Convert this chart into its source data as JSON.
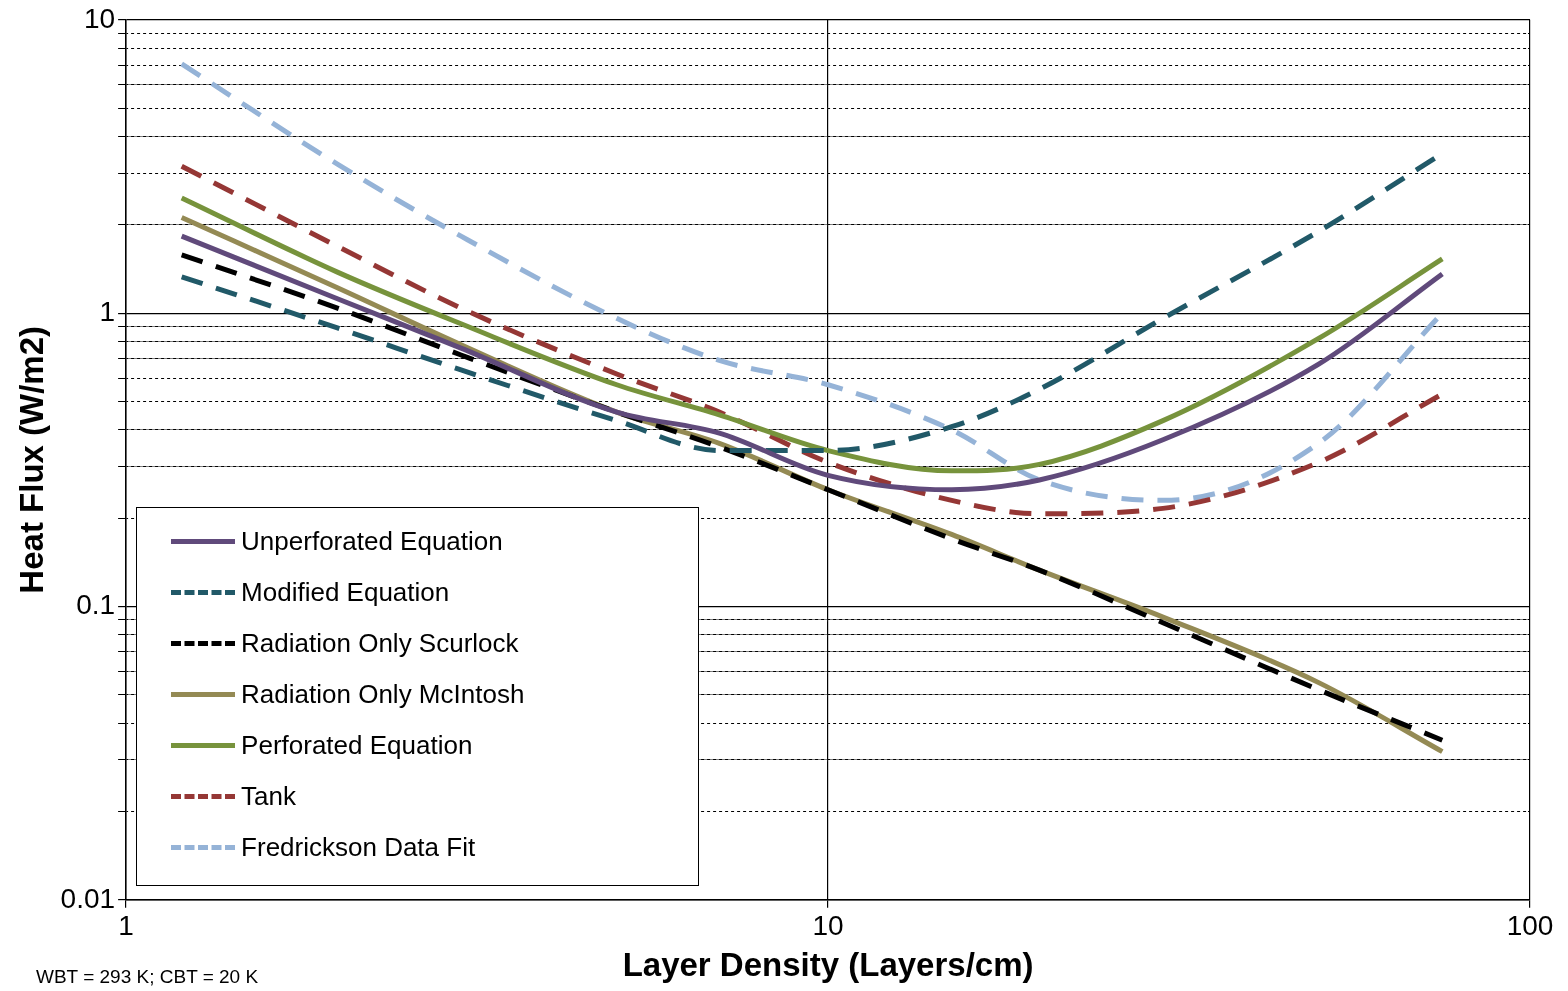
{
  "chart_data": {
    "type": "line",
    "xlabel": "Layer Density (Layers/cm)",
    "ylabel": "Heat Flux (W/m2)",
    "log": "xy",
    "x": [
      1.2,
      2,
      3,
      5,
      7,
      10,
      15,
      20,
      30,
      50,
      75
    ],
    "xlim": [
      1,
      100
    ],
    "xticks": [
      1,
      10,
      100
    ],
    "ylim": [
      0.01,
      10
    ],
    "yticks": [
      0.01,
      {
        "value": 0.02,
        "label": null
      },
      {
        "value": 0.03,
        "label": null
      },
      {
        "value": 0.04,
        "label": null
      },
      {
        "value": 0.05,
        "label": null
      },
      {
        "value": 0.06,
        "label": null
      },
      {
        "value": 0.07,
        "label": null
      },
      {
        "value": 0.08,
        "label": null
      },
      {
        "value": 0.09,
        "label": null
      },
      0.1,
      {
        "value": 0.2,
        "label": null
      },
      {
        "value": 0.3,
        "label": null
      },
      {
        "value": 0.4,
        "label": null
      },
      {
        "value": 0.5,
        "label": null
      },
      {
        "value": 0.6,
        "label": null
      },
      {
        "value": 0.7,
        "label": null
      },
      {
        "value": 0.8,
        "label": null
      },
      {
        "value": 0.9,
        "label": null
      },
      1,
      {
        "value": 2,
        "label": null
      },
      {
        "value": 3,
        "label": null
      },
      {
        "value": 4,
        "label": null
      },
      {
        "value": 5,
        "label": null
      },
      {
        "value": 6,
        "label": null
      },
      {
        "value": 7,
        "label": null
      },
      {
        "value": 8,
        "label": null
      },
      {
        "value": 9,
        "label": null
      },
      10
    ],
    "grid": true,
    "legend": "bottom left",
    "marker": "none",
    "series": [
      {
        "name": "Unperforated Equation",
        "color": "#604a7b",
        "line_style": "solid",
        "values": [
          1.83,
          1.12,
          0.76,
          0.46,
          0.39,
          0.28,
          0.25,
          0.27,
          0.37,
          0.67,
          1.36
        ]
      },
      {
        "name": "Modified Equation",
        "color": "#215968",
        "line_style": "dashed",
        "values": [
          1.33,
          0.89,
          0.64,
          0.43,
          0.34,
          0.34,
          0.41,
          0.55,
          0.96,
          1.9,
          3.5
        ]
      },
      {
        "name": "Radiation Only Scurlock",
        "color": "#000000",
        "line_style": "dashed",
        "values": [
          1.58,
          1.04,
          0.72,
          0.46,
          0.35,
          0.25,
          0.17,
          0.133,
          0.088,
          0.052,
          0.035
        ]
      },
      {
        "name": "Radiation Only McIntosh",
        "color": "#948a54",
        "line_style": "solid",
        "values": [
          2.12,
          1.22,
          0.78,
          0.46,
          0.36,
          0.25,
          0.176,
          0.133,
          0.092,
          0.055,
          0.032
        ]
      },
      {
        "name": "Perforated Equation",
        "color": "#77933c",
        "line_style": "solid",
        "values": [
          2.47,
          1.38,
          0.92,
          0.57,
          0.45,
          0.34,
          0.29,
          0.305,
          0.43,
          0.82,
          1.53
        ]
      },
      {
        "name": "Tank",
        "color": "#953735",
        "line_style": "dashed",
        "values": [
          3.17,
          1.69,
          1.04,
          0.62,
          0.46,
          0.31,
          0.23,
          0.207,
          0.216,
          0.31,
          0.53
        ]
      },
      {
        "name": "Fredrickson Data Fit",
        "color": "#95b3d7",
        "line_style": "dashed",
        "values": [
          7.07,
          3.22,
          1.83,
          0.96,
          0.69,
          0.57,
          0.4,
          0.27,
          0.23,
          0.36,
          1.0
        ]
      }
    ],
    "annotations": [
      "WBT = 293 K; CBT = 20 K"
    ]
  }
}
